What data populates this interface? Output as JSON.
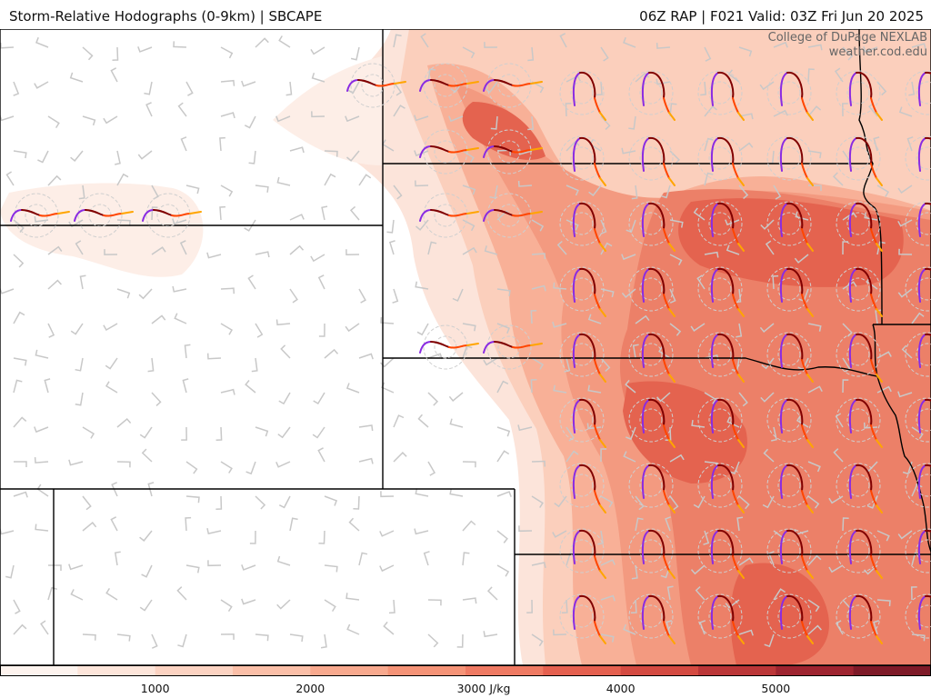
{
  "header": {
    "title": "Storm-Relative Hodographs (0-9km) | SBCAPE",
    "valid": "06Z RAP | F021 Valid: 03Z Fri Jun 20 2025"
  },
  "credit": {
    "line1": "College of DuPage NEXLAB",
    "line2": "weather.cod.edu"
  },
  "colorbar": {
    "range": [
      0,
      6000
    ],
    "colors": [
      "#fdf3ee",
      "#fde5da",
      "#fcd3c2",
      "#fbbfa8",
      "#f8a98e",
      "#f59377",
      "#ef7a63",
      "#e5604f",
      "#d44a41",
      "#bb3638",
      "#9e2430",
      "#7e1a28"
    ],
    "ticks": [
      {
        "value": 1000,
        "label": "1000"
      },
      {
        "value": 2000,
        "label": "2000"
      },
      {
        "value": 3000,
        "label": "3000 J/kg"
      },
      {
        "value": 4000,
        "label": "4000"
      },
      {
        "value": 5000,
        "label": "5000"
      }
    ]
  },
  "colors": {
    "border": "#000000",
    "barb": "#c8c8c8",
    "hodo_low": "#8a2be2",
    "hodo_mid": "#800000",
    "hodo_upper": "#ff4500",
    "hodo_top": "#ffa500"
  }
}
